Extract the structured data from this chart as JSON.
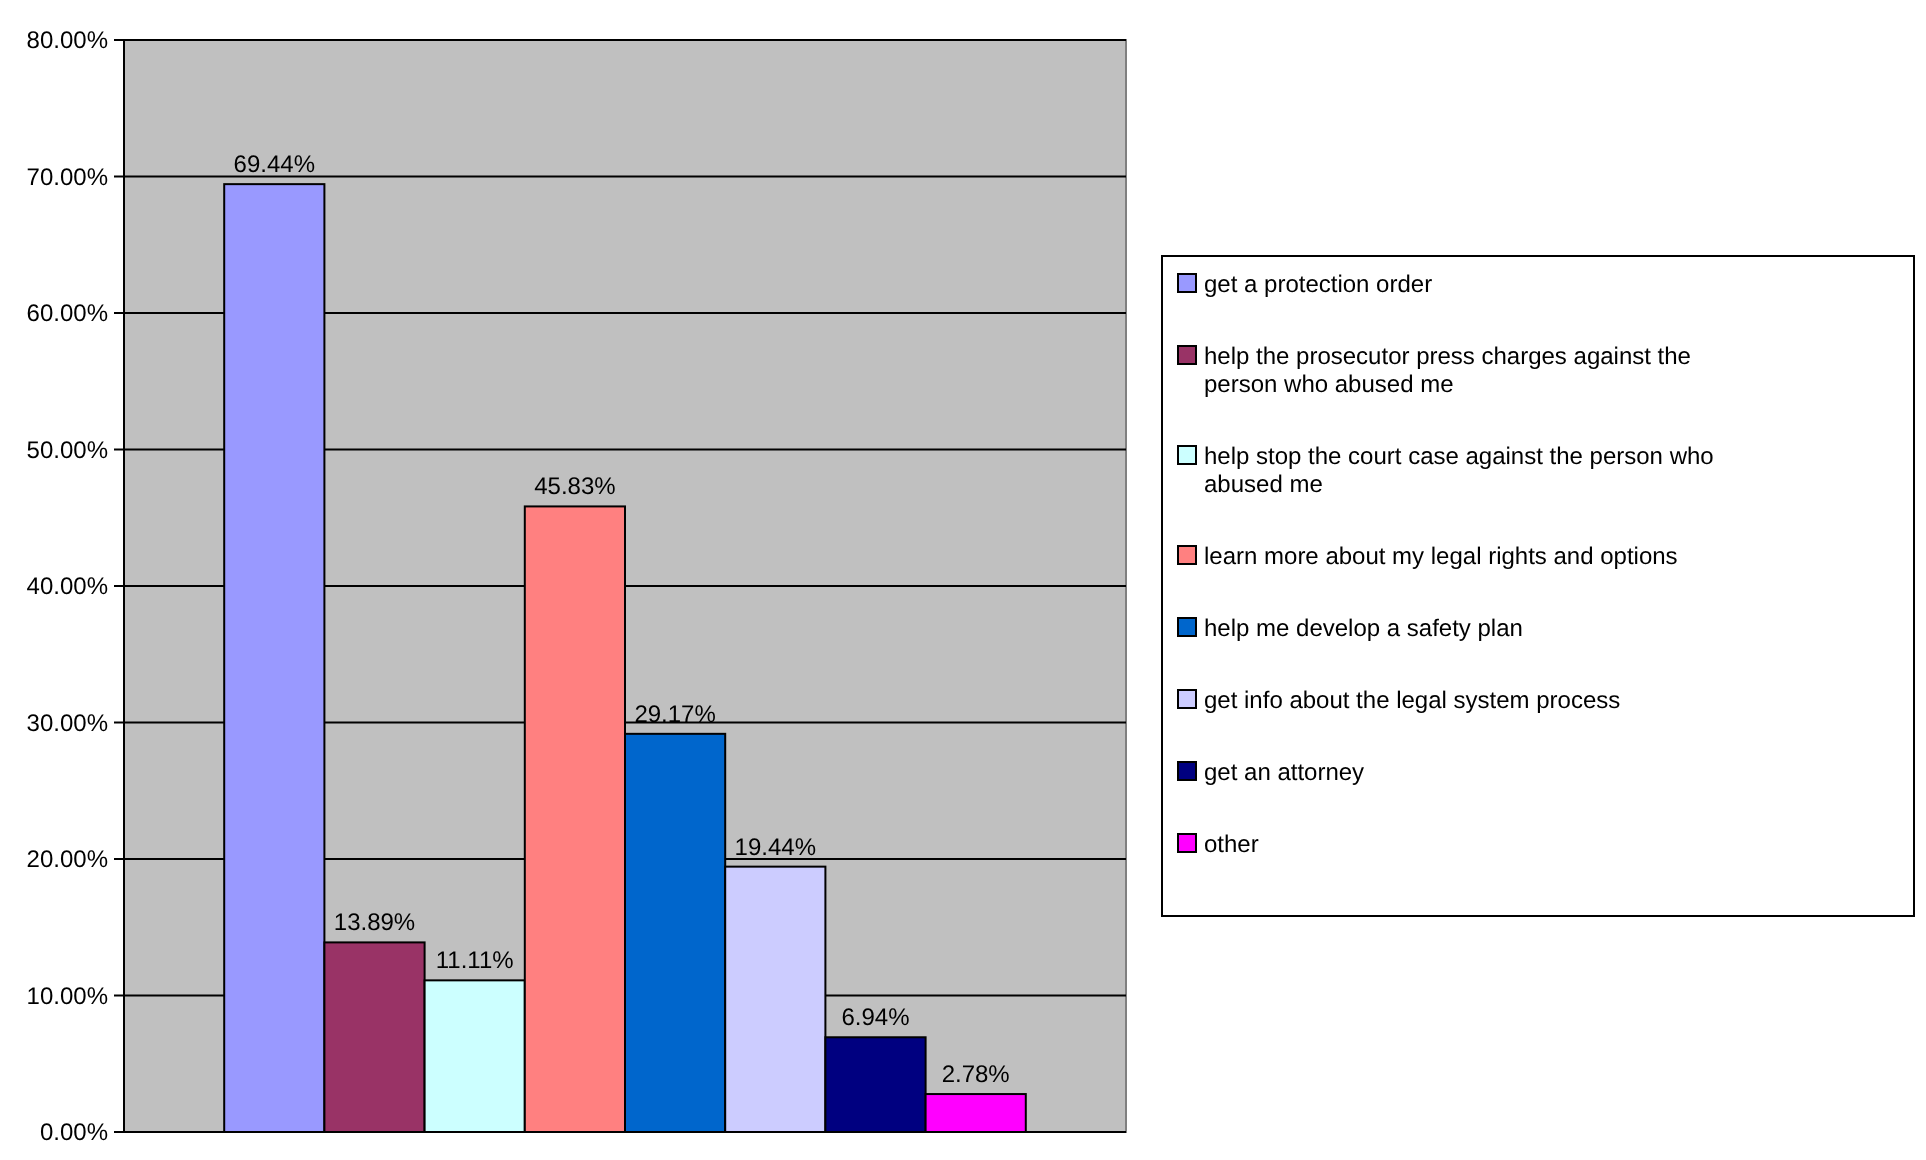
{
  "chart_data": {
    "type": "bar",
    "categories": [
      null
    ],
    "series": [
      {
        "name": "get a protection order",
        "color": "#9999ff",
        "values": [
          69.44
        ],
        "value_labels": [
          "69.44%"
        ]
      },
      {
        "name": "help the prosecutor press charges against the person who abused me",
        "color": "#993366",
        "values": [
          13.89
        ],
        "value_labels": [
          "13.89%"
        ]
      },
      {
        "name": "help stop the court case against the person who abused me",
        "color": "#ccffff",
        "values": [
          11.11
        ],
        "value_labels": [
          "11.11%"
        ]
      },
      {
        "name": "learn more about my legal rights and options",
        "color": "#ff8080",
        "values": [
          45.83
        ],
        "value_labels": [
          "45.83%"
        ]
      },
      {
        "name": "help me develop a safety plan",
        "color": "#0066cc",
        "values": [
          29.17
        ],
        "value_labels": [
          "29.17%"
        ]
      },
      {
        "name": "get info about the legal system process",
        "color": "#ccccff",
        "values": [
          19.44
        ],
        "value_labels": [
          "19.44%"
        ]
      },
      {
        "name": "get an attorney",
        "color": "#000080",
        "values": [
          6.94
        ],
        "value_labels": [
          "6.94%"
        ]
      },
      {
        "name": "other",
        "color": "#ff00ff",
        "values": [
          2.78
        ],
        "value_labels": [
          "2.78%"
        ]
      }
    ],
    "ylim": [
      0,
      80
    ],
    "yticks": [
      {
        "value": 0,
        "label": "0.00%"
      },
      {
        "value": 10,
        "label": "10.00%"
      },
      {
        "value": 20,
        "label": "20.00%"
      },
      {
        "value": 30,
        "label": "30.00%"
      },
      {
        "value": 40,
        "label": "40.00%"
      },
      {
        "value": 50,
        "label": "50.00%"
      },
      {
        "value": 60,
        "label": "60.00%"
      },
      {
        "value": 70,
        "label": "70.00%"
      },
      {
        "value": 80,
        "label": "80.00%"
      }
    ],
    "grid": "y",
    "legend": "right"
  }
}
